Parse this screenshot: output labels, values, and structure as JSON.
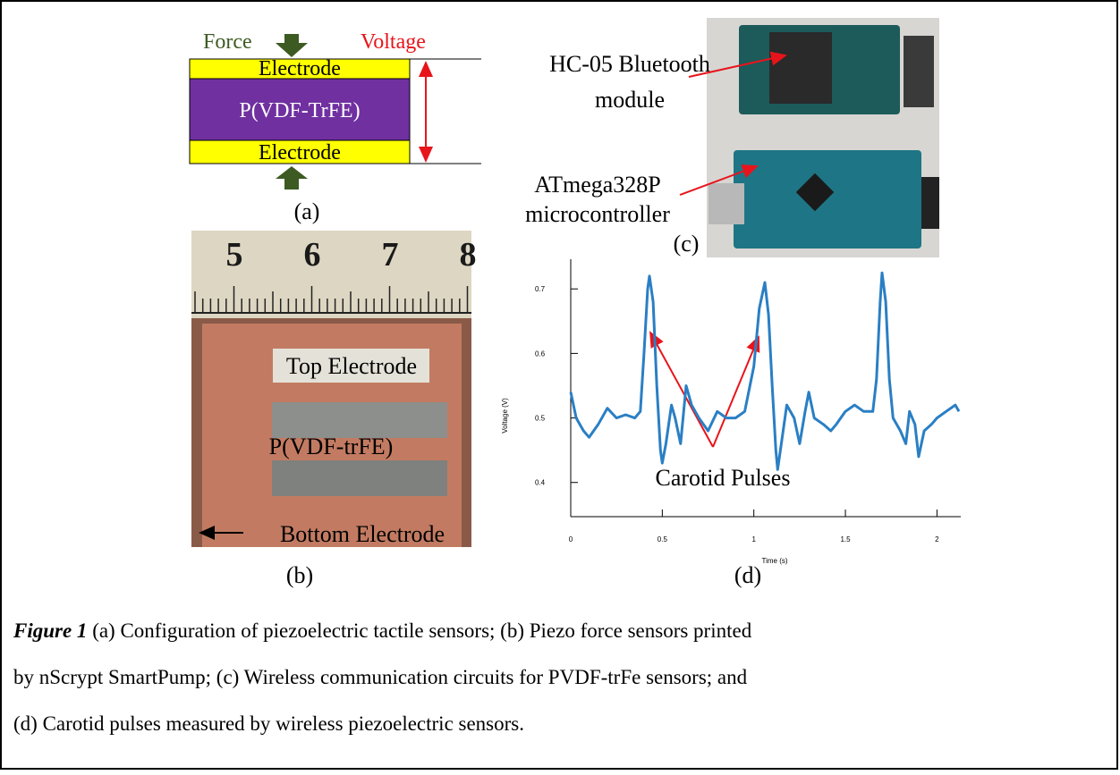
{
  "figure": {
    "panel_a": {
      "label": "(a)",
      "force": "Force",
      "voltage": "Voltage",
      "top_electrode": "Electrode",
      "layer": "P(VDF-TrFE)",
      "bottom_electrode": "Electrode"
    },
    "panel_b": {
      "label": "(b)",
      "ruler_numbers": [
        5,
        6,
        7,
        8
      ],
      "top_electrode": "Top Electrode",
      "layer": "P(VDF-trFE)",
      "bottom_electrode": "Bottom Electrode"
    },
    "panel_c": {
      "label": "(c)",
      "bluetooth": [
        "HC-05 Bluetooth",
        "module"
      ],
      "microcontroller": [
        "ATmega328P",
        "microcontroller"
      ]
    },
    "panel_d": {
      "label": "(d)",
      "chart_data": {
        "type": "line",
        "x_label": "Time (s)",
        "y_label": "Voltage (V)",
        "annotation": "Carotid Pulses",
        "color": "#2a7fc4",
        "x": [
          0,
          0.03,
          0.07,
          0.1,
          0.15,
          0.2,
          0.25,
          0.3,
          0.35,
          0.38,
          0.4,
          0.42,
          0.43,
          0.45,
          0.47,
          0.49,
          0.5,
          0.52,
          0.55,
          0.57,
          0.6,
          0.63,
          0.66,
          0.7,
          0.75,
          0.8,
          0.85,
          0.9,
          0.95,
          1.0,
          1.03,
          1.06,
          1.08,
          1.1,
          1.12,
          1.13,
          1.15,
          1.18,
          1.22,
          1.25,
          1.28,
          1.3,
          1.33,
          1.38,
          1.42,
          1.45,
          1.5,
          1.55,
          1.6,
          1.65,
          1.67,
          1.69,
          1.7,
          1.72,
          1.74,
          1.76,
          1.8,
          1.83,
          1.85,
          1.88,
          1.9,
          1.93,
          1.97,
          2.0,
          2.05,
          2.1,
          2.12
        ],
        "values": [
          0.54,
          0.5,
          0.48,
          0.47,
          0.49,
          0.515,
          0.5,
          0.505,
          0.5,
          0.51,
          0.6,
          0.7,
          0.72,
          0.68,
          0.55,
          0.45,
          0.43,
          0.46,
          0.52,
          0.5,
          0.46,
          0.55,
          0.52,
          0.5,
          0.48,
          0.51,
          0.5,
          0.5,
          0.51,
          0.58,
          0.67,
          0.71,
          0.66,
          0.55,
          0.45,
          0.42,
          0.46,
          0.52,
          0.5,
          0.46,
          0.51,
          0.54,
          0.5,
          0.49,
          0.48,
          0.49,
          0.51,
          0.52,
          0.51,
          0.51,
          0.56,
          0.68,
          0.725,
          0.68,
          0.56,
          0.5,
          0.48,
          0.46,
          0.51,
          0.49,
          0.44,
          0.48,
          0.49,
          0.5,
          0.51,
          0.52,
          0.51
        ],
        "xlim": [
          0,
          2.13
        ],
        "ylim": [
          0.347,
          0.746
        ],
        "xticks": [
          0,
          0.5,
          1,
          1.5,
          2
        ],
        "yticks": [
          0.4,
          0.5,
          0.6,
          0.7
        ]
      }
    }
  },
  "caption": {
    "label": "Figure 1",
    "lines": [
      " (a) Configuration of piezoelectric tactile sensors; (b) Piezo force sensors printed",
      "by nScrypt SmartPump; (c) Wireless communication circuits for PVDF-trFe sensors; and",
      "(d) Carotid pulses measured by wireless piezoelectric sensors."
    ]
  }
}
